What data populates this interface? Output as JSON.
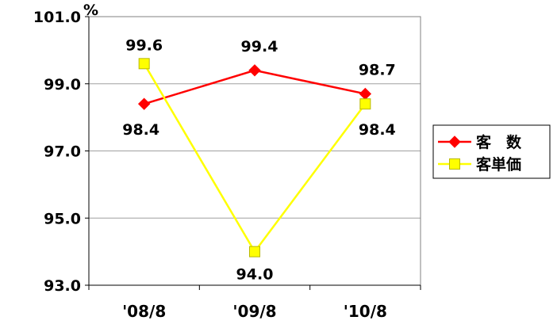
{
  "chart_data": {
    "type": "line",
    "unit_label": "%",
    "categories": [
      "'08/8",
      "'09/8",
      "'10/8"
    ],
    "ylim": [
      93.0,
      101.0
    ],
    "yticks": [
      "93.0",
      "95.0",
      "97.0",
      "99.0",
      "101.0"
    ],
    "ytick_values": [
      93.0,
      95.0,
      97.0,
      99.0,
      101.0
    ],
    "grid": true,
    "legend_position": "right",
    "series": [
      {
        "name": "客　数",
        "values": [
          98.4,
          99.4,
          98.7
        ],
        "labels": [
          "98.4",
          "99.4",
          "98.7"
        ],
        "color": "#ff0000",
        "marker": "diamond"
      },
      {
        "name": "客単価",
        "values": [
          99.6,
          94.0,
          98.4
        ],
        "labels": [
          "99.6",
          "94.0",
          "98.4"
        ],
        "color": "#ffff00",
        "marker": "square"
      }
    ]
  }
}
